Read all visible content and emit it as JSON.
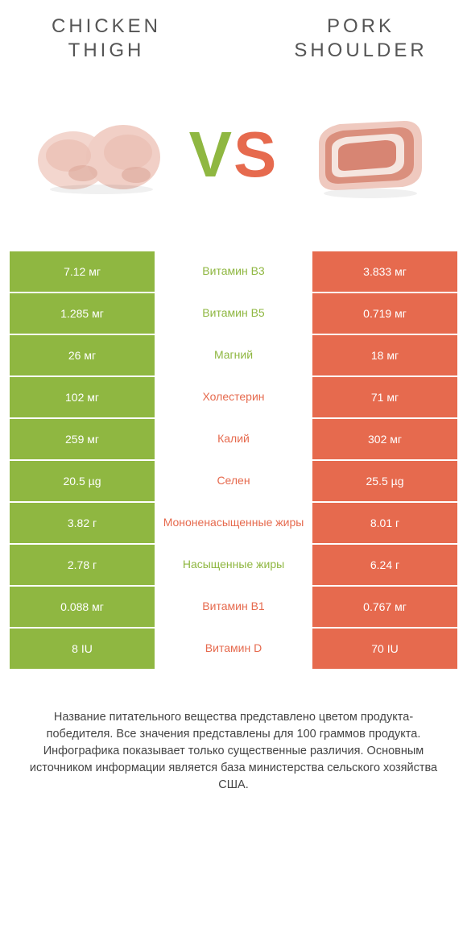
{
  "background_color": "#ffffff",
  "colors": {
    "left": "#8fb741",
    "right": "#e66a4e",
    "title_text": "#555555",
    "footnote_text": "#444444",
    "cell_text": "#ffffff"
  },
  "header": {
    "left_title": "CHICKEN\nTHIGH",
    "right_title": "PORK\nSHOULDER",
    "vs_v": "V",
    "vs_s": "S",
    "title_fontsize": 24,
    "title_letter_spacing": 4,
    "vs_fontsize": 80
  },
  "table": {
    "left_bg": "#8fb741",
    "right_bg": "#e66a4e",
    "row_border": "#ffffff",
    "value_fontsize": 14,
    "label_fontsize": 14,
    "rows": [
      {
        "left": "7.12 мг",
        "label": "Витамин B3",
        "right": "3.833 мг",
        "winner": "left"
      },
      {
        "left": "1.285 мг",
        "label": "Витамин B5",
        "right": "0.719 мг",
        "winner": "left"
      },
      {
        "left": "26 мг",
        "label": "Магний",
        "right": "18 мг",
        "winner": "left"
      },
      {
        "left": "102 мг",
        "label": "Холестерин",
        "right": "71 мг",
        "winner": "right"
      },
      {
        "left": "259 мг",
        "label": "Калий",
        "right": "302 мг",
        "winner": "right"
      },
      {
        "left": "20.5 µg",
        "label": "Селен",
        "right": "25.5 µg",
        "winner": "right"
      },
      {
        "left": "3.82 г",
        "label": "Мононенасыщенные жиры",
        "right": "8.01 г",
        "winner": "right"
      },
      {
        "left": "2.78 г",
        "label": "Насыщенные жиры",
        "right": "6.24 г",
        "winner": "left"
      },
      {
        "left": "0.088 мг",
        "label": "Витамин B1",
        "right": "0.767 мг",
        "winner": "right"
      },
      {
        "left": "8 IU",
        "label": "Витамин D",
        "right": "70 IU",
        "winner": "right"
      }
    ]
  },
  "footnote": {
    "lines": [
      "Название питательного вещества представлено цветом продукта-победителя.",
      "Все значения представлены для 100 граммов продукта.",
      "Инфографика показывает только существенные различия.",
      "Основным источником информации является база министерства сельского хозяйства США."
    ],
    "fontsize": 14.5
  }
}
